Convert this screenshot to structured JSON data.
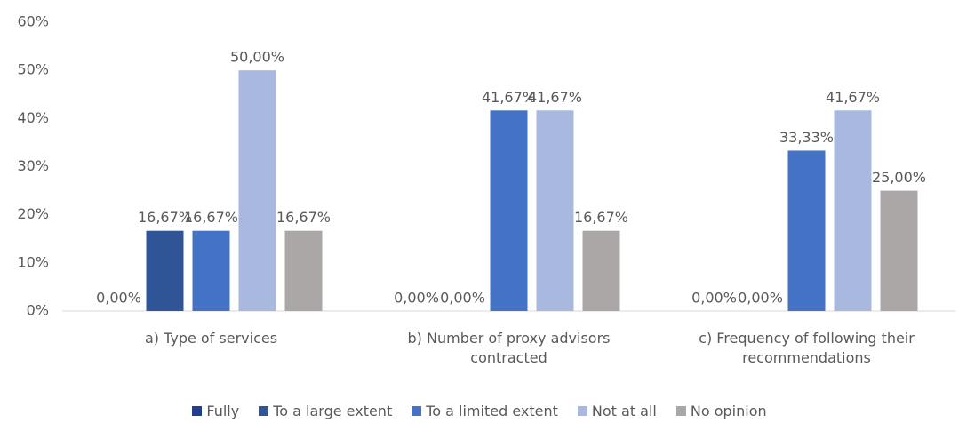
{
  "chart_data": {
    "type": "bar",
    "categories": [
      "a) Type of services",
      "b) Number of proxy advisors contracted",
      "c) Frequency of following their recommendations"
    ],
    "series": [
      {
        "name": "Fully",
        "color": "#203f8f",
        "values": [
          0,
          0,
          0
        ],
        "value_labels": [
          "0,00%",
          "0,00%",
          "0,00%"
        ]
      },
      {
        "name": "To a large extent",
        "color": "#2f5597",
        "values": [
          16.67,
          0,
          0
        ],
        "value_labels": [
          "16,67%",
          "0,00%",
          "0,00%"
        ]
      },
      {
        "name": "To a limited extent",
        "color": "#4472c4",
        "values": [
          16.67,
          41.67,
          33.33
        ],
        "value_labels": [
          "16,67%",
          "41,67%",
          "33,33%"
        ]
      },
      {
        "name": "Not at all",
        "color": "#a9b8de",
        "values": [
          50,
          41.67,
          41.67
        ],
        "value_labels": [
          "50,00%",
          "41,67%",
          "41,67%"
        ]
      },
      {
        "name": "No opinion",
        "color": "#aba7a7",
        "values": [
          16.67,
          16.67,
          25
        ],
        "value_labels": [
          "16,67%",
          "16,67%",
          "25,00%"
        ]
      }
    ],
    "ylim": [
      0,
      60
    ],
    "yticks": [
      {
        "value": 0,
        "label": "0%"
      },
      {
        "value": 10,
        "label": "10%"
      },
      {
        "value": 20,
        "label": "20%"
      },
      {
        "value": 30,
        "label": "30%"
      },
      {
        "value": 40,
        "label": "40%"
      },
      {
        "value": 50,
        "label": "50%"
      },
      {
        "value": 60,
        "label": "60%"
      }
    ],
    "grid": false,
    "legend": "bottom"
  }
}
